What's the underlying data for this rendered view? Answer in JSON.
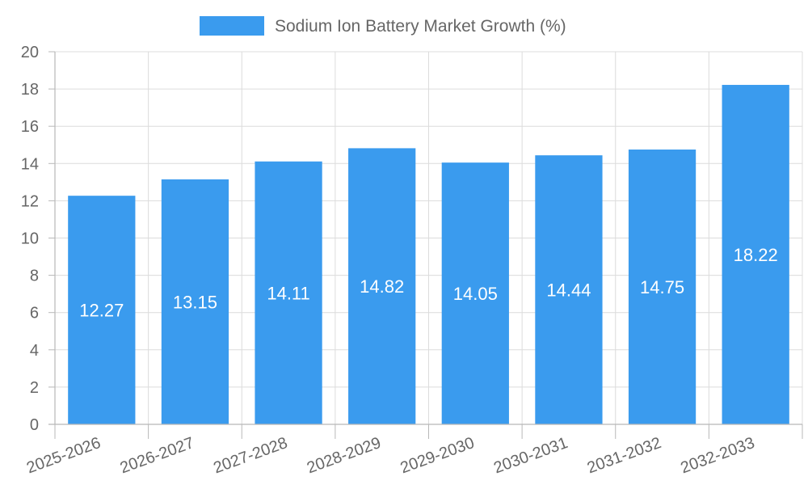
{
  "chart_data": {
    "type": "bar",
    "categories": [
      "2025-2026",
      "2026-2027",
      "2027-2028",
      "2028-2029",
      "2029-2030",
      "2030-2031",
      "2031-2032",
      "2032-2033"
    ],
    "series": [
      {
        "name": "Sodium Ion Battery Market Growth (%)",
        "values": [
          12.27,
          13.15,
          14.11,
          14.82,
          14.05,
          14.44,
          14.75,
          18.22
        ],
        "color": "#3a9bee"
      }
    ],
    "value_labels": [
      "12.27",
      "13.15",
      "14.11",
      "14.82",
      "14.05",
      "14.44",
      "14.75",
      "18.22"
    ],
    "y_ticks": [
      "0",
      "2",
      "4",
      "6",
      "8",
      "10",
      "12",
      "14",
      "16",
      "18",
      "20"
    ],
    "ylim": [
      0,
      20
    ],
    "grid": true,
    "legend_position": "top-center",
    "title": "",
    "xlabel": "",
    "ylabel": ""
  }
}
